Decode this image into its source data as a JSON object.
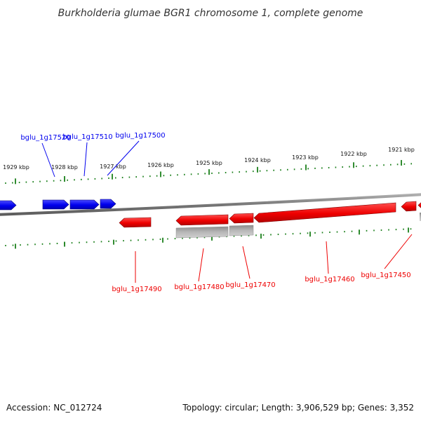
{
  "title": "Burkholderia glumae BGR1 chromosome 1, complete genome",
  "accession": "Accession: NC_012724",
  "summary": "Topology: circular; Length: 3,906,529 bp; Genes: 3,352",
  "colors": {
    "forward": "#0000ee",
    "reverse": "#ee0000",
    "rna": "#a8a8a8",
    "ticks": "#1a7f1a",
    "backbone": "#808080"
  },
  "scale": {
    "outer_ticks": [
      "1929 kbp",
      "1928 kbp",
      "1927 kbp",
      "1926 kbp",
      "1925 kbp",
      "1924 kbp",
      "1923 kbp",
      "1922 kbp",
      "1921 kbp"
    ]
  },
  "genes": {
    "forward": [
      {
        "label": "bglu_1g17520"
      },
      {
        "label": "bglu_1g17510"
      },
      {
        "label": "bglu_1g17500"
      }
    ],
    "reverse": [
      {
        "label": "bglu_1g17490"
      },
      {
        "label": "bglu_1g17480"
      },
      {
        "label": "bglu_1g17470"
      },
      {
        "label": "bglu_1g17460"
      },
      {
        "label": "bglu_1g17450"
      }
    ]
  }
}
